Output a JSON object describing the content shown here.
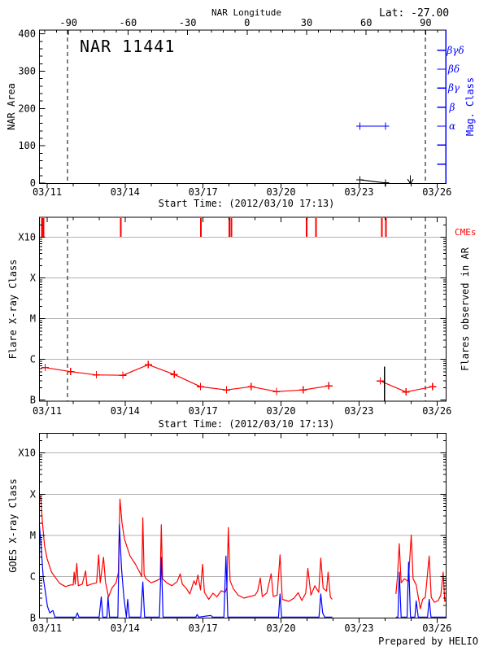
{
  "header": {
    "lat_label": "Lat: -27.00",
    "top_axis_title": "NAR Longitude",
    "region_title": "NAR 11441"
  },
  "captions": {
    "start_time": "Start Time: (2012/03/10 17:13)",
    "credit": "Prepared by HELIO"
  },
  "colors": {
    "red": "#ff0000",
    "blue": "#0000ff",
    "grid_gray": "#b2b2b2",
    "black": "#000000"
  },
  "chart_data": [
    {
      "type": "line",
      "panel": "nar-area",
      "title": "NAR 11441",
      "lat_label": "Lat: -27.00",
      "ylabel": "NAR Area",
      "ylim": [
        0,
        400
      ],
      "y_tick_values": [
        0,
        100,
        200,
        300,
        400
      ],
      "y_tick_labels": [
        "0",
        "100",
        "200",
        "300",
        "400"
      ],
      "x_tick_labels": [
        "03/11",
        "03/14",
        "03/17",
        "03/20",
        "03/23",
        "03/26"
      ],
      "top_axis": {
        "label": "NAR Longitude",
        "tick_labels": [
          "-90",
          "-60",
          "-30",
          "0",
          "30",
          "60",
          "90"
        ],
        "tick_values": [
          -90,
          -60,
          -30,
          0,
          30,
          60,
          90
        ]
      },
      "right_axis": {
        "label": "Mag. Class",
        "labels": [
          "βγδ",
          "βδ",
          "βγ",
          "β",
          "α"
        ],
        "color": "#0000ff"
      },
      "dashed_line_days": [
        0.79,
        14.56
      ],
      "area_points_day_value": [
        [
          12.03,
          9
        ],
        [
          13.02,
          0.5
        ]
      ],
      "area_arrow_day": 13.98,
      "mag_segment": {
        "day_start": 12.03,
        "day_end": 13.02,
        "class": "α"
      }
    },
    {
      "type": "line",
      "panel": "flare-xray-class",
      "ylabel": "Flare X-ray Class",
      "y_tick_labels": [
        "B",
        "C",
        "M",
        "X",
        "X10"
      ],
      "right_label": "Flares observed in AR",
      "cme_label": "CMEs",
      "xlabel": "Start Time: (2012/03/10 17:13)",
      "x_tick_labels": [
        "03/11",
        "03/14",
        "03/17",
        "03/20",
        "03/23",
        "03/26"
      ],
      "dashed_line_days": [
        0.79,
        14.56
      ],
      "cme_days": [
        -0.2,
        -0.14,
        2.83,
        5.91,
        7.01,
        7.09,
        9.98,
        10.34,
        12.88,
        13.03
      ],
      "event_line_day": 12.98,
      "flare_points_day_decade": [
        [
          -0.08,
          0.8
        ],
        [
          0.9,
          0.7
        ],
        [
          1.89,
          0.62
        ],
        [
          2.91,
          0.61
        ],
        [
          3.89,
          0.87
        ],
        [
          4.89,
          0.63
        ],
        [
          5.9,
          0.33
        ],
        [
          6.9,
          0.25
        ],
        [
          7.85,
          0.33
        ],
        [
          8.83,
          0.21
        ],
        [
          9.85,
          0.25
        ],
        [
          10.84,
          0.35
        ],
        null,
        [
          12.82,
          0.47
        ],
        [
          13.81,
          0.2
        ],
        [
          14.83,
          0.33
        ]
      ]
    },
    {
      "type": "line",
      "panel": "goes-xray",
      "ylabel": "GOES X-ray Class",
      "y_tick_labels": [
        "B",
        "C",
        "M",
        "X",
        "X10"
      ],
      "x_tick_labels": [
        "03/11",
        "03/14",
        "03/17",
        "03/20",
        "03/23",
        "03/26"
      ],
      "credit": "Prepared by HELIO",
      "series": [
        {
          "name": "goes-long-red",
          "color": "#ff0000",
          "points_day_decade": [
            [
              -0.3,
              2.91
            ],
            [
              -0.25,
              2.95
            ],
            [
              -0.18,
              2.3
            ],
            [
              -0.1,
              1.75
            ],
            [
              0.0,
              1.43
            ],
            [
              0.17,
              1.11
            ],
            [
              0.35,
              0.95
            ],
            [
              0.48,
              0.84
            ],
            [
              0.7,
              0.76
            ],
            [
              0.9,
              0.8
            ],
            [
              1.0,
              0.8
            ],
            [
              1.04,
              1.11
            ],
            [
              1.08,
              0.82
            ],
            [
              1.14,
              1.32
            ],
            [
              1.2,
              0.78
            ],
            [
              1.35,
              0.82
            ],
            [
              1.48,
              1.14
            ],
            [
              1.53,
              0.78
            ],
            [
              1.7,
              0.82
            ],
            [
              1.9,
              0.85
            ],
            [
              1.98,
              1.53
            ],
            [
              2.04,
              0.85
            ],
            [
              2.17,
              1.47
            ],
            [
              2.24,
              0.88
            ],
            [
              2.36,
              0.51
            ],
            [
              2.5,
              0.73
            ],
            [
              2.65,
              0.85
            ],
            [
              2.74,
              1.1
            ],
            [
              2.8,
              2.88
            ],
            [
              2.88,
              2.3
            ],
            [
              2.98,
              1.9
            ],
            [
              3.19,
              1.5
            ],
            [
              3.4,
              1.3
            ],
            [
              3.56,
              1.11
            ],
            [
              3.64,
              1.0
            ],
            [
              3.68,
              2.43
            ],
            [
              3.73,
              1.05
            ],
            [
              3.8,
              0.95
            ],
            [
              4.0,
              0.85
            ],
            [
              4.2,
              0.9
            ],
            [
              4.35,
              0.95
            ],
            [
              4.39,
              2.26
            ],
            [
              4.44,
              0.95
            ],
            [
              4.6,
              0.85
            ],
            [
              4.8,
              0.78
            ],
            [
              5.0,
              0.88
            ],
            [
              5.12,
              1.07
            ],
            [
              5.2,
              0.82
            ],
            [
              5.35,
              0.72
            ],
            [
              5.49,
              0.58
            ],
            [
              5.65,
              0.9
            ],
            [
              5.72,
              0.8
            ],
            [
              5.8,
              1.04
            ],
            [
              5.9,
              0.68
            ],
            [
              5.98,
              1.3
            ],
            [
              6.05,
              0.62
            ],
            [
              6.22,
              0.45
            ],
            [
              6.38,
              0.6
            ],
            [
              6.53,
              0.51
            ],
            [
              6.7,
              0.66
            ],
            [
              6.85,
              0.62
            ],
            [
              6.92,
              0.75
            ],
            [
              6.97,
              2.19
            ],
            [
              7.04,
              0.9
            ],
            [
              7.16,
              0.71
            ],
            [
              7.35,
              0.55
            ],
            [
              7.57,
              0.48
            ],
            [
              7.8,
              0.52
            ],
            [
              8.0,
              0.55
            ],
            [
              8.1,
              0.65
            ],
            [
              8.2,
              0.97
            ],
            [
              8.28,
              0.52
            ],
            [
              8.45,
              0.6
            ],
            [
              8.62,
              1.07
            ],
            [
              8.7,
              0.52
            ],
            [
              8.85,
              0.55
            ],
            [
              8.96,
              1.53
            ],
            [
              9.05,
              0.45
            ],
            [
              9.3,
              0.4
            ],
            [
              9.5,
              0.48
            ],
            [
              9.66,
              0.61
            ],
            [
              9.8,
              0.42
            ],
            [
              9.95,
              0.6
            ],
            [
              10.03,
              1.2
            ],
            [
              10.15,
              0.55
            ],
            [
              10.3,
              0.78
            ],
            [
              10.45,
              0.62
            ],
            [
              10.53,
              1.45
            ],
            [
              10.62,
              0.72
            ],
            [
              10.75,
              0.65
            ],
            [
              10.81,
              1.11
            ],
            [
              10.9,
              0.5
            ],
            [
              10.97,
              0.45
            ],
            null,
            [
              13.42,
              0.58
            ],
            [
              13.48,
              1.0
            ],
            [
              13.55,
              1.8
            ],
            [
              13.62,
              0.85
            ],
            [
              13.75,
              0.95
            ],
            [
              13.9,
              0.88
            ],
            [
              14.01,
              2.01
            ],
            [
              14.08,
              0.95
            ],
            [
              14.2,
              0.8
            ],
            [
              14.36,
              0.22
            ],
            [
              14.45,
              0.45
            ],
            [
              14.55,
              0.5
            ],
            [
              14.7,
              1.5
            ],
            [
              14.78,
              0.5
            ],
            [
              14.9,
              0.38
            ],
            [
              15.05,
              0.42
            ],
            [
              15.15,
              0.55
            ],
            [
              15.24,
              1.11
            ],
            [
              15.3,
              0.4
            ],
            [
              15.35,
              0.45
            ]
          ]
        },
        {
          "name": "goes-short-blue",
          "color": "#0000ff",
          "points_day_decade": [
            [
              -0.3,
              2.26
            ],
            [
              -0.24,
              1.8
            ],
            [
              -0.15,
              0.97
            ],
            [
              -0.05,
              0.55
            ],
            [
              0.01,
              0.28
            ],
            [
              0.1,
              0.12
            ],
            [
              0.22,
              0.18
            ],
            [
              0.3,
              0.02
            ],
            [
              1.1,
              0.02
            ],
            [
              1.16,
              0.12
            ],
            [
              1.22,
              0.02
            ],
            [
              2.0,
              0.02
            ],
            [
              2.08,
              0.51
            ],
            [
              2.14,
              0.02
            ],
            [
              2.3,
              0.02
            ],
            [
              2.34,
              0.51
            ],
            [
              2.4,
              0.02
            ],
            [
              2.72,
              0.02
            ],
            [
              2.78,
              2.26
            ],
            [
              2.86,
              1.2
            ],
            [
              2.95,
              0.5
            ],
            [
              3.05,
              0.02
            ],
            [
              3.1,
              0.45
            ],
            [
              3.16,
              0.02
            ],
            [
              3.6,
              0.02
            ],
            [
              3.68,
              0.87
            ],
            [
              3.75,
              0.02
            ],
            [
              4.32,
              0.02
            ],
            [
              4.39,
              1.47
            ],
            [
              4.46,
              0.02
            ],
            [
              5.72,
              0.02
            ],
            [
              5.77,
              0.08
            ],
            [
              5.83,
              0.02
            ],
            [
              6.3,
              0.06
            ],
            [
              6.36,
              0.02
            ],
            [
              6.8,
              0.02
            ],
            [
              6.88,
              1.5
            ],
            [
              6.95,
              0.02
            ],
            [
              8.9,
              0.02
            ],
            [
              8.96,
              0.58
            ],
            [
              9.02,
              0.02
            ],
            [
              10.46,
              0.02
            ],
            [
              10.53,
              0.58
            ],
            [
              10.6,
              0.12
            ],
            [
              10.68,
              0.02
            ],
            [
              10.97,
              0.02
            ],
            null,
            [
              13.42,
              0.02
            ],
            [
              13.5,
              0.02
            ],
            [
              13.55,
              1.11
            ],
            [
              13.62,
              0.02
            ],
            [
              13.85,
              0.02
            ],
            [
              13.91,
              1.35
            ],
            [
              13.98,
              0.02
            ],
            [
              14.15,
              0.02
            ],
            [
              14.2,
              0.41
            ],
            [
              14.28,
              0.02
            ],
            [
              14.64,
              0.02
            ],
            [
              14.7,
              0.45
            ],
            [
              14.77,
              0.02
            ],
            [
              15.35,
              0.02
            ]
          ]
        }
      ]
    }
  ]
}
